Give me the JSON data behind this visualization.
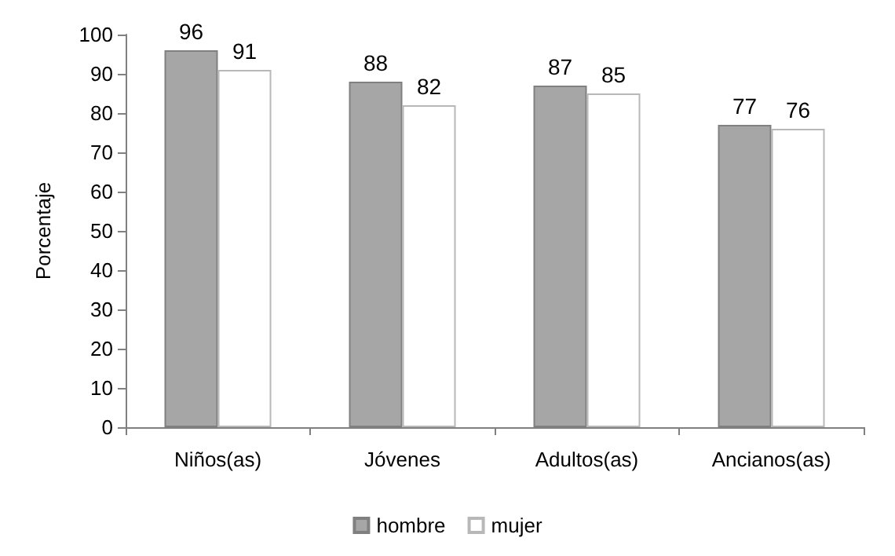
{
  "chart_data": {
    "type": "bar",
    "ylabel": "Porcentaje",
    "categories": [
      "Niños(as)",
      "Jóvenes",
      "Adultos(as)",
      "Ancianos(as)"
    ],
    "series": [
      {
        "name": "hombre",
        "color": "#a6a6a6",
        "values": [
          96,
          88,
          87,
          77
        ]
      },
      {
        "name": "mujer",
        "color": "#ffffff",
        "values": [
          91,
          82,
          85,
          76
        ]
      }
    ],
    "ylim": [
      0,
      100
    ],
    "yticks": [
      0,
      10,
      20,
      30,
      40,
      50,
      60,
      70,
      80,
      90,
      100
    ],
    "grid": false,
    "legend": "bottom",
    "data_labels": true
  }
}
